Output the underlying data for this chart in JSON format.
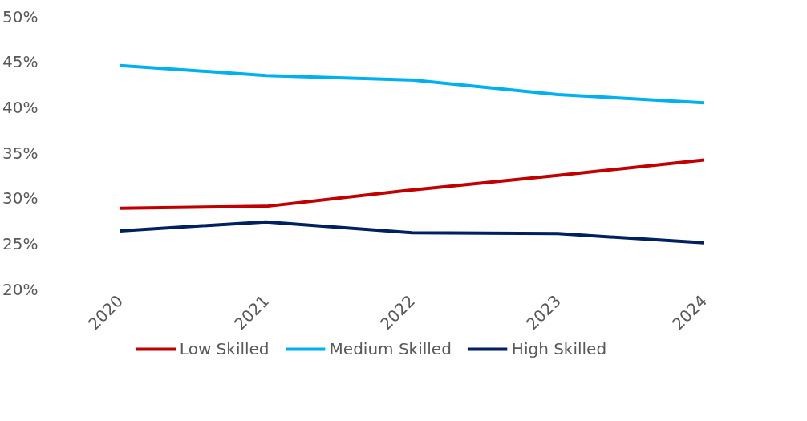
{
  "chart_data": {
    "type": "line",
    "categories": [
      "2020",
      "2021",
      "2022",
      "2023",
      "2024"
    ],
    "series": [
      {
        "name": "Low Skilled",
        "color": "#c00000",
        "values": [
          28.9,
          29.1,
          30.9,
          32.5,
          34.2
        ]
      },
      {
        "name": "Medium Skilled",
        "color": "#00b0f0",
        "values": [
          44.6,
          43.5,
          43.0,
          41.4,
          40.5
        ]
      },
      {
        "name": "High Skilled",
        "color": "#002060",
        "values": [
          26.4,
          27.4,
          26.2,
          26.1,
          25.1
        ]
      }
    ],
    "ylim": [
      20,
      50
    ],
    "yticks": [
      {
        "value": 20,
        "label": "20%"
      },
      {
        "value": 25,
        "label": "25%"
      },
      {
        "value": 30,
        "label": "30%"
      },
      {
        "value": 35,
        "label": "35%"
      },
      {
        "value": 40,
        "label": "40%"
      },
      {
        "value": 45,
        "label": "45%"
      },
      {
        "value": 50,
        "label": "50%"
      }
    ],
    "grid": false,
    "legend": "bottom",
    "marker": "none",
    "line_style": "solid"
  }
}
